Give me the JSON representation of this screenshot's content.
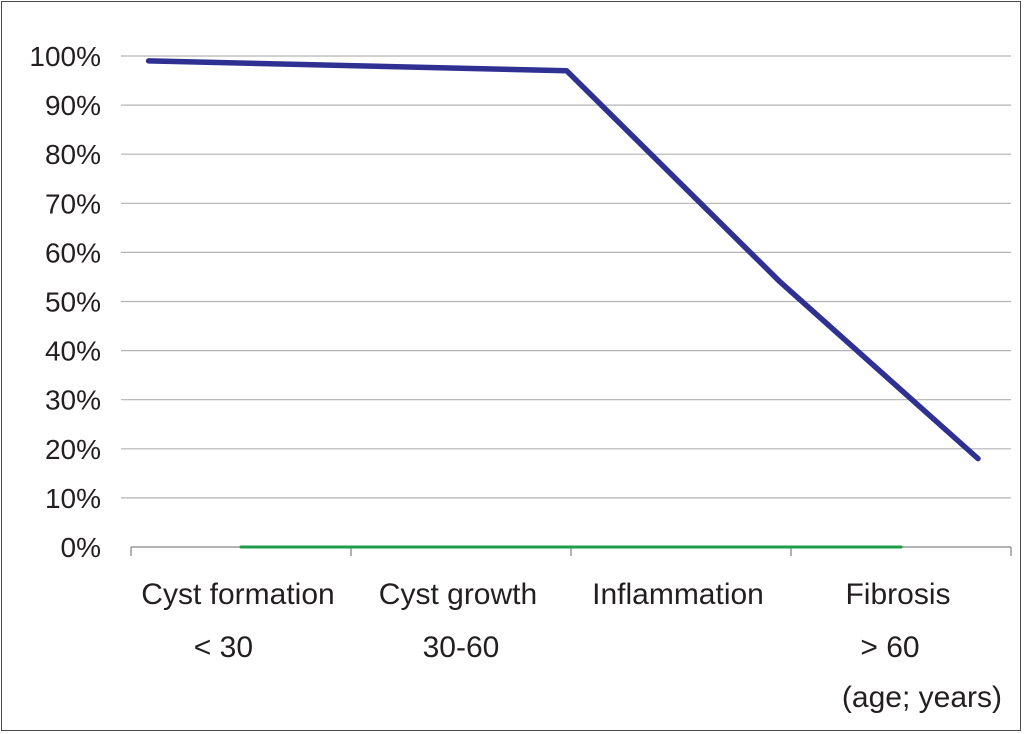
{
  "chart_data": {
    "type": "line",
    "categories": [
      "Cyst formation",
      "Cyst growth",
      "Inflammation",
      "Fibrosis"
    ],
    "range_labels": [
      {
        "text": "< 30",
        "at": 0.42
      },
      {
        "text": "30-60",
        "at": 1.5
      },
      {
        "text": "> 60",
        "at": 3.45
      }
    ],
    "axis_note": "(age; years)",
    "ytick_labels": [
      "0%",
      "10%",
      "20%",
      "30%",
      "40%",
      "50%",
      "60%",
      "70%",
      "80%",
      "90%",
      "100%"
    ],
    "ylim": [
      0,
      100
    ],
    "grid": true,
    "series": [
      {
        "color": "#2e3192",
        "points": [
          {
            "x": 0.08,
            "y": 99
          },
          {
            "x": 1.98,
            "y": 97
          },
          {
            "x": 2.95,
            "y": 54
          },
          {
            "x": 3.85,
            "y": 18
          }
        ]
      },
      {
        "color": "#1e9e4a",
        "points": [
          {
            "x": 0.5,
            "y": 0
          },
          {
            "x": 3.5,
            "y": 0
          }
        ]
      }
    ]
  }
}
